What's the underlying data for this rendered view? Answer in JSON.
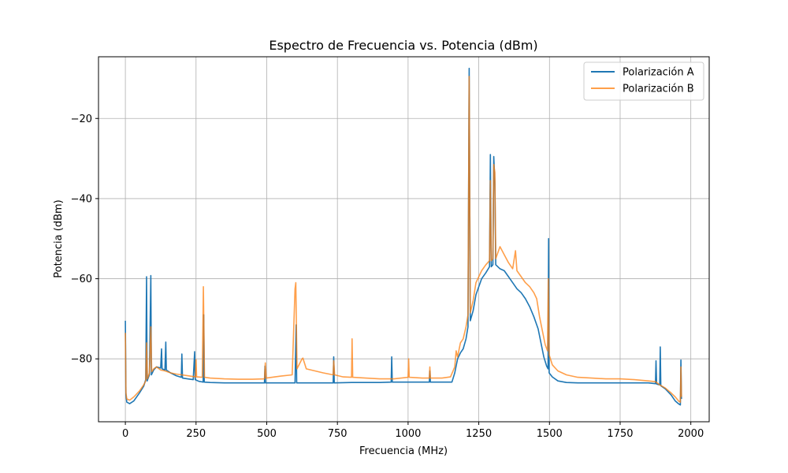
{
  "chart_data": {
    "type": "line",
    "title": "Espectro de Frecuencia vs. Potencia (dBm)",
    "xlabel": "Frecuencia (MHz)",
    "ylabel": "Potencia (dBm)",
    "xlim": [
      -95,
      2065
    ],
    "ylim": [
      -95.7,
      -4.6
    ],
    "x_ticks": [
      0,
      250,
      500,
      750,
      1000,
      1250,
      1500,
      1750,
      2000
    ],
    "x_tick_labels": [
      "0",
      "250",
      "500",
      "750",
      "1000",
      "1250",
      "1500",
      "1750",
      "2000"
    ],
    "y_ticks": [
      -80,
      -60,
      -40,
      -20
    ],
    "y_tick_labels": [
      "−80",
      "−60",
      "−40",
      "−20"
    ],
    "grid": true,
    "legend_position": "top-right",
    "series": [
      {
        "name": "Polarización A",
        "color": "#1f77b4",
        "opacity": 1,
        "points": [
          [
            0,
            -70.5
          ],
          [
            2,
            -89
          ],
          [
            5,
            -90.8
          ],
          [
            15,
            -91.2
          ],
          [
            30,
            -90.5
          ],
          [
            50,
            -88.5
          ],
          [
            65,
            -86.8
          ],
          [
            72,
            -85.2
          ],
          [
            75,
            -59.5
          ],
          [
            77,
            -85.5
          ],
          [
            85,
            -84
          ],
          [
            90,
            -59.2
          ],
          [
            92,
            -84
          ],
          [
            100,
            -82.8
          ],
          [
            110,
            -82
          ],
          [
            125,
            -82.3
          ],
          [
            128,
            -77.5
          ],
          [
            130,
            -82.5
          ],
          [
            140,
            -82.8
          ],
          [
            143,
            -75.8
          ],
          [
            145,
            -82.8
          ],
          [
            160,
            -83.5
          ],
          [
            180,
            -84.2
          ],
          [
            198,
            -84.6
          ],
          [
            200,
            -78.8
          ],
          [
            202,
            -84.8
          ],
          [
            220,
            -85
          ],
          [
            240,
            -85.2
          ],
          [
            245,
            -78.2
          ],
          [
            247,
            -85.2
          ],
          [
            260,
            -85.6
          ],
          [
            275,
            -85.8
          ],
          [
            277,
            -69
          ],
          [
            279,
            -85.8
          ],
          [
            300,
            -85.9
          ],
          [
            350,
            -86.0
          ],
          [
            400,
            -86.0
          ],
          [
            450,
            -86.0
          ],
          [
            492,
            -86.0
          ],
          [
            494,
            -81.8
          ],
          [
            496,
            -86.0
          ],
          [
            550,
            -86.0
          ],
          [
            600,
            -86.0
          ],
          [
            604,
            -71.5
          ],
          [
            606,
            -86.0
          ],
          [
            650,
            -86.0
          ],
          [
            700,
            -86.0
          ],
          [
            735,
            -86.0
          ],
          [
            737,
            -79.5
          ],
          [
            739,
            -86.0
          ],
          [
            800,
            -85.9
          ],
          [
            850,
            -85.9
          ],
          [
            900,
            -85.9
          ],
          [
            940,
            -85.8
          ],
          [
            942,
            -79.5
          ],
          [
            944,
            -85.8
          ],
          [
            1000,
            -85.8
          ],
          [
            1050,
            -85.8
          ],
          [
            1075,
            -85.8
          ],
          [
            1077,
            -83
          ],
          [
            1079,
            -85.8
          ],
          [
            1120,
            -85.8
          ],
          [
            1155,
            -85.8
          ],
          [
            1165,
            -83.5
          ],
          [
            1175,
            -80
          ],
          [
            1185,
            -78.5
          ],
          [
            1195,
            -77.5
          ],
          [
            1205,
            -75
          ],
          [
            1212,
            -72
          ],
          [
            1216,
            -7.5
          ],
          [
            1220,
            -70.5
          ],
          [
            1230,
            -68
          ],
          [
            1240,
            -64
          ],
          [
            1250,
            -62
          ],
          [
            1260,
            -60
          ],
          [
            1275,
            -58.5
          ],
          [
            1288,
            -57
          ],
          [
            1291,
            -29
          ],
          [
            1294,
            -57
          ],
          [
            1300,
            -56.5
          ],
          [
            1303,
            -29.5
          ],
          [
            1307,
            -36.2
          ],
          [
            1310,
            -56.5
          ],
          [
            1325,
            -57.5
          ],
          [
            1340,
            -58
          ],
          [
            1355,
            -59.5
          ],
          [
            1370,
            -61
          ],
          [
            1385,
            -62.5
          ],
          [
            1400,
            -63.5
          ],
          [
            1415,
            -65
          ],
          [
            1430,
            -67
          ],
          [
            1445,
            -69.5
          ],
          [
            1460,
            -72.5
          ],
          [
            1470,
            -76
          ],
          [
            1480,
            -79.5
          ],
          [
            1490,
            -81.8
          ],
          [
            1495,
            -82.5
          ],
          [
            1497,
            -50
          ],
          [
            1499,
            -83.5
          ],
          [
            1510,
            -84.5
          ],
          [
            1530,
            -85.5
          ],
          [
            1560,
            -85.9
          ],
          [
            1600,
            -86.0
          ],
          [
            1650,
            -86.0
          ],
          [
            1700,
            -86.0
          ],
          [
            1750,
            -86.0
          ],
          [
            1800,
            -86.0
          ],
          [
            1850,
            -86.0
          ],
          [
            1875,
            -86.2
          ],
          [
            1877,
            -80.5
          ],
          [
            1879,
            -86.3
          ],
          [
            1890,
            -86.5
          ],
          [
            1892,
            -77
          ],
          [
            1894,
            -86.7
          ],
          [
            1910,
            -87.5
          ],
          [
            1930,
            -89
          ],
          [
            1945,
            -90.5
          ],
          [
            1958,
            -91.3
          ],
          [
            1963,
            -91.5
          ],
          [
            1965,
            -80.3
          ],
          [
            1967,
            -90
          ]
        ]
      },
      {
        "name": "Polarización B",
        "color": "#ff7f0e",
        "opacity": 0.75,
        "points": [
          [
            0,
            -73.5
          ],
          [
            2,
            -88.5
          ],
          [
            5,
            -90
          ],
          [
            15,
            -90.3
          ],
          [
            30,
            -89.5
          ],
          [
            50,
            -88
          ],
          [
            65,
            -86.5
          ],
          [
            72,
            -85.5
          ],
          [
            75,
            -76
          ],
          [
            78,
            -85
          ],
          [
            85,
            -83.5
          ],
          [
            90,
            -72
          ],
          [
            93,
            -83.2
          ],
          [
            100,
            -82.5
          ],
          [
            110,
            -82
          ],
          [
            125,
            -82.8
          ],
          [
            140,
            -83
          ],
          [
            160,
            -83.5
          ],
          [
            180,
            -83.8
          ],
          [
            200,
            -84
          ],
          [
            220,
            -84.2
          ],
          [
            248,
            -84.5
          ],
          [
            250,
            -80.2
          ],
          [
            252,
            -84.5
          ],
          [
            272,
            -84.6
          ],
          [
            276,
            -62
          ],
          [
            280,
            -84.6
          ],
          [
            300,
            -84.8
          ],
          [
            350,
            -85
          ],
          [
            400,
            -85.1
          ],
          [
            450,
            -85.1
          ],
          [
            492,
            -85
          ],
          [
            495,
            -81
          ],
          [
            498,
            -84.8
          ],
          [
            550,
            -84.3
          ],
          [
            590,
            -84
          ],
          [
            600,
            -62.5
          ],
          [
            603,
            -61
          ],
          [
            607,
            -82.5
          ],
          [
            625,
            -80
          ],
          [
            628,
            -79.8
          ],
          [
            640,
            -82.5
          ],
          [
            700,
            -83.5
          ],
          [
            735,
            -84
          ],
          [
            737,
            -80.5
          ],
          [
            740,
            -84
          ],
          [
            770,
            -84.5
          ],
          [
            800,
            -84.6
          ],
          [
            802,
            -75
          ],
          [
            804,
            -84.6
          ],
          [
            850,
            -84.8
          ],
          [
            900,
            -85
          ],
          [
            950,
            -85
          ],
          [
            1000,
            -84.6
          ],
          [
            1002,
            -80
          ],
          [
            1004,
            -84.6
          ],
          [
            1050,
            -84.8
          ],
          [
            1075,
            -84.8
          ],
          [
            1077,
            -82
          ],
          [
            1079,
            -84.8
          ],
          [
            1120,
            -84.8
          ],
          [
            1150,
            -84.5
          ],
          [
            1165,
            -82
          ],
          [
            1170,
            -78
          ],
          [
            1175,
            -79.5
          ],
          [
            1185,
            -76
          ],
          [
            1195,
            -75
          ],
          [
            1205,
            -72
          ],
          [
            1212,
            -69
          ],
          [
            1216,
            -9.5
          ],
          [
            1220,
            -68.5
          ],
          [
            1230,
            -65.5
          ],
          [
            1240,
            -61
          ],
          [
            1250,
            -59.5
          ],
          [
            1260,
            -58
          ],
          [
            1275,
            -56.5
          ],
          [
            1288,
            -55.5
          ],
          [
            1291,
            -35.5
          ],
          [
            1294,
            -55.5
          ],
          [
            1300,
            -55
          ],
          [
            1303,
            -31.5
          ],
          [
            1307,
            -33.5
          ],
          [
            1310,
            -55
          ],
          [
            1325,
            -52
          ],
          [
            1340,
            -54
          ],
          [
            1355,
            -56
          ],
          [
            1370,
            -57.5
          ],
          [
            1380,
            -53
          ],
          [
            1385,
            -58
          ],
          [
            1400,
            -59.5
          ],
          [
            1415,
            -61
          ],
          [
            1430,
            -62
          ],
          [
            1445,
            -63.5
          ],
          [
            1455,
            -65
          ],
          [
            1465,
            -69.5
          ],
          [
            1475,
            -73
          ],
          [
            1485,
            -76.5
          ],
          [
            1493,
            -78
          ],
          [
            1496,
            -60
          ],
          [
            1499,
            -79
          ],
          [
            1510,
            -81.5
          ],
          [
            1530,
            -83
          ],
          [
            1560,
            -84
          ],
          [
            1600,
            -84.6
          ],
          [
            1650,
            -84.8
          ],
          [
            1700,
            -85
          ],
          [
            1750,
            -85
          ],
          [
            1800,
            -85.2
          ],
          [
            1850,
            -85.5
          ],
          [
            1875,
            -85.7
          ],
          [
            1890,
            -86.5
          ],
          [
            1910,
            -87.3
          ],
          [
            1930,
            -88.5
          ],
          [
            1945,
            -89.5
          ],
          [
            1958,
            -90.6
          ],
          [
            1963,
            -90.8
          ],
          [
            1965,
            -82
          ],
          [
            1967,
            -89.5
          ]
        ]
      }
    ]
  }
}
